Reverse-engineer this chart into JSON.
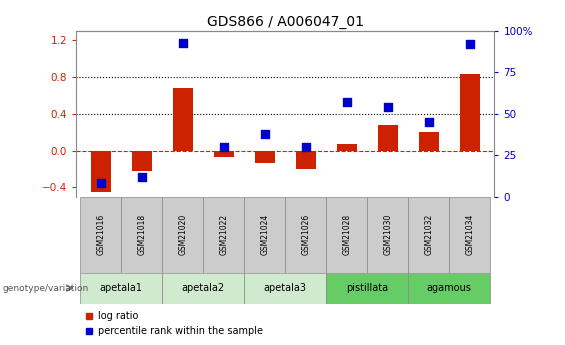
{
  "title": "GDS866 / A006047_01",
  "samples": [
    "GSM21016",
    "GSM21018",
    "GSM21020",
    "GSM21022",
    "GSM21024",
    "GSM21026",
    "GSM21028",
    "GSM21030",
    "GSM21032",
    "GSM21034"
  ],
  "log_ratio": [
    -0.45,
    -0.22,
    0.68,
    -0.07,
    -0.13,
    -0.2,
    0.07,
    0.28,
    0.2,
    0.83
  ],
  "percentile_rank": [
    8,
    12,
    93,
    30,
    38,
    30,
    57,
    54,
    45,
    92
  ],
  "groups": [
    {
      "name": "apetala1",
      "indices": [
        0,
        1
      ],
      "color": "#d0ead0"
    },
    {
      "name": "apetala2",
      "indices": [
        2,
        3
      ],
      "color": "#d0ead0"
    },
    {
      "name": "apetala3",
      "indices": [
        4,
        5
      ],
      "color": "#d0ead0"
    },
    {
      "name": "pistillata",
      "indices": [
        6,
        7
      ],
      "color": "#66cc66"
    },
    {
      "name": "agamous",
      "indices": [
        8,
        9
      ],
      "color": "#66cc66"
    }
  ],
  "ylim_left": [
    -0.5,
    1.3
  ],
  "ylim_right": [
    0,
    100
  ],
  "yticks_left": [
    -0.4,
    0.0,
    0.4,
    0.8,
    1.2
  ],
  "yticks_right": [
    0,
    25,
    50,
    75,
    100
  ],
  "bar_color": "#cc2200",
  "scatter_color": "#0000cc",
  "hline_color": "#cc2200",
  "dotline_color": "#000000",
  "bar_width": 0.5,
  "scatter_size": 35,
  "sample_box_color": "#cccccc",
  "sample_box_edge": "#888888"
}
